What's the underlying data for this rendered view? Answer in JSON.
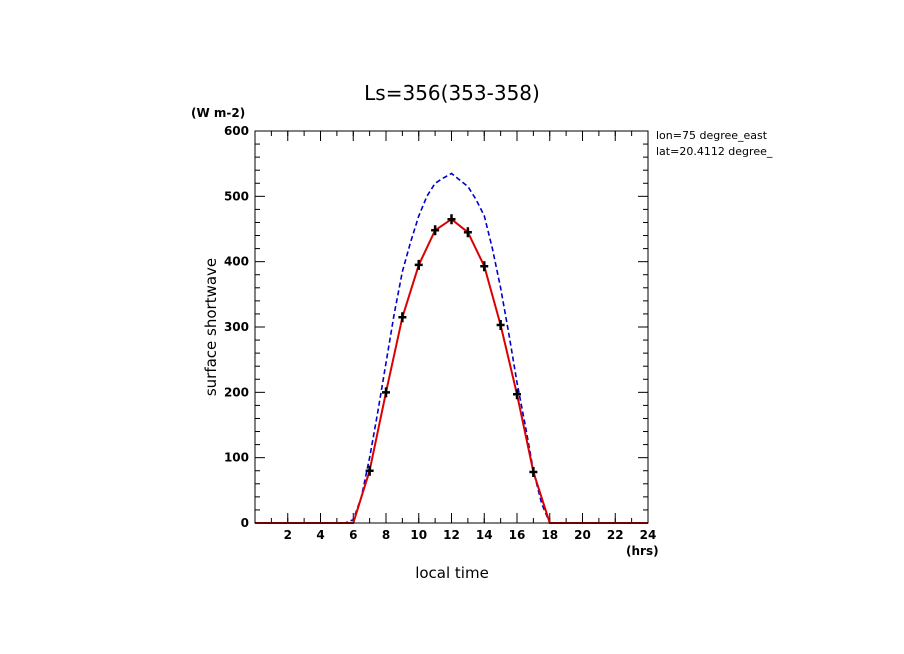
{
  "chart_data": {
    "type": "line",
    "title": "Ls=356(353-358)",
    "xlabel": "local time",
    "x_unit": "(hrs)",
    "ylabel": "surface shortwave",
    "y_unit": "(W m-2)",
    "xlim": [
      0,
      24
    ],
    "ylim": [
      0,
      600
    ],
    "x_ticks": [
      2,
      4,
      6,
      8,
      10,
      12,
      14,
      16,
      18,
      20,
      22,
      24
    ],
    "y_ticks": [
      0,
      100,
      200,
      300,
      400,
      500,
      600
    ],
    "annotations": [
      "lon=75 degree_east",
      "lat=20.4112 degree_"
    ],
    "grid": false,
    "series": [
      {
        "style": "dashed",
        "color": "#0000cc",
        "x": [
          0,
          1,
          2,
          3,
          4,
          5,
          5.5,
          6,
          6.5,
          7,
          7.5,
          8,
          8.5,
          9,
          9.5,
          10,
          10.5,
          11,
          11.5,
          12,
          12.5,
          13,
          13.5,
          14,
          14.5,
          15,
          15.5,
          16,
          16.5,
          17,
          17.5,
          18,
          19,
          20,
          21,
          22,
          23,
          24
        ],
        "y": [
          0,
          0,
          0,
          0,
          0,
          0,
          0,
          5,
          40,
          100,
          170,
          245,
          320,
          385,
          430,
          470,
          500,
          520,
          528,
          535,
          525,
          515,
          495,
          470,
          420,
          360,
          290,
          215,
          150,
          80,
          30,
          0,
          0,
          0,
          0,
          0,
          0,
          0
        ]
      },
      {
        "style": "solid",
        "color": "#dd0000",
        "x": [
          0,
          1,
          2,
          3,
          4,
          5,
          6,
          7,
          8,
          9,
          10,
          11,
          12,
          13,
          14,
          15,
          16,
          17,
          18,
          19,
          20,
          21,
          22,
          23,
          24
        ],
        "y": [
          0,
          0,
          0,
          0,
          0,
          0,
          0,
          80,
          200,
          315,
          395,
          448,
          465,
          445,
          393,
          303,
          197,
          78,
          0,
          0,
          0,
          0,
          0,
          0,
          0
        ]
      },
      {
        "style": "markers",
        "marker": "+",
        "color": "#000000",
        "x": [
          7,
          8,
          9,
          10,
          11,
          12,
          13,
          14,
          15,
          16,
          17
        ],
        "y": [
          80,
          200,
          315,
          395,
          448,
          465,
          445,
          393,
          303,
          197,
          78
        ]
      }
    ]
  }
}
